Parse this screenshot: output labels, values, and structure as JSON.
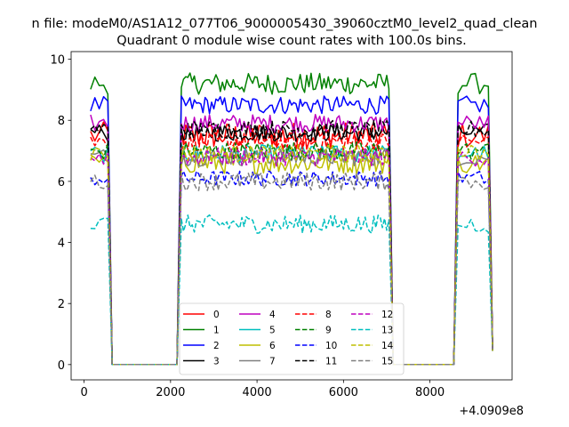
{
  "chart_data": {
    "type": "line",
    "suptitle": "n file: modeM0/AS1A12_077T06_9000005430_39060cztM0_level2_quad_clean",
    "title": "Quadrant 0 module wise count rates with 100.0s bins.",
    "xlabel": "",
    "ylabel": "",
    "x_offset_label": "+4.0909e8",
    "xlim": [
      -300,
      9900
    ],
    "ylim": [
      -0.5,
      10.25
    ],
    "xticks": [
      0,
      2000,
      4000,
      6000,
      8000
    ],
    "xtick_labels": [
      "0",
      "2000",
      "4000",
      "6000",
      "8000"
    ],
    "yticks": [
      0,
      2,
      4,
      6,
      8,
      10
    ],
    "ytick_labels": [
      "0",
      "2",
      "4",
      "6",
      "8",
      "10"
    ],
    "legend_location": "lower center",
    "segments": [
      {
        "x_start": 150,
        "x_end": 550,
        "drop_end": 650
      },
      {
        "x_start": 2250,
        "x_end": 7050,
        "ramp_start": 2150,
        "drop_end": 7150
      },
      {
        "x_start": 8650,
        "x_end": 9350,
        "ramp_start": 8550,
        "drop_end": 9450
      }
    ],
    "zero_segments": [
      [
        650,
        2150
      ],
      [
        7150,
        8550
      ]
    ],
    "series": [
      {
        "name": "0",
        "color": "#ff0000",
        "dash": "solid",
        "level": 7.5,
        "noise": 0.45
      },
      {
        "name": "1",
        "color": "#008000",
        "dash": "solid",
        "level": 9.2,
        "noise": 0.35
      },
      {
        "name": "2",
        "color": "#0000ff",
        "dash": "solid",
        "level": 8.5,
        "noise": 0.3
      },
      {
        "name": "3",
        "color": "#000000",
        "dash": "solid",
        "level": 7.6,
        "noise": 0.3
      },
      {
        "name": "4",
        "color": "#bf00bf",
        "dash": "solid",
        "level": 7.9,
        "noise": 0.3
      },
      {
        "name": "5",
        "color": "#00bfbf",
        "dash": "solid",
        "level": 6.9,
        "noise": 0.3
      },
      {
        "name": "6",
        "color": "#bfbf00",
        "dash": "solid",
        "level": 6.6,
        "noise": 0.35
      },
      {
        "name": "7",
        "color": "#808080",
        "dash": "solid",
        "level": 6.8,
        "noise": 0.3
      },
      {
        "name": "8",
        "color": "#ff0000",
        "dash": "dashed",
        "level": 7.3,
        "noise": 0.3
      },
      {
        "name": "9",
        "color": "#008000",
        "dash": "dashed",
        "level": 7.0,
        "noise": 0.3
      },
      {
        "name": "10",
        "color": "#0000ff",
        "dash": "dashed",
        "level": 6.1,
        "noise": 0.25
      },
      {
        "name": "11",
        "color": "#000000",
        "dash": "dashed",
        "level": 7.7,
        "noise": 0.3
      },
      {
        "name": "12",
        "color": "#bf00bf",
        "dash": "dashed",
        "level": 6.8,
        "noise": 0.3
      },
      {
        "name": "13",
        "color": "#00bfbf",
        "dash": "dashed",
        "level": 4.6,
        "noise": 0.3
      },
      {
        "name": "14",
        "color": "#bfbf00",
        "dash": "dashed",
        "level": 6.9,
        "noise": 0.3
      },
      {
        "name": "15",
        "color": "#808080",
        "dash": "dashed",
        "level": 6.0,
        "noise": 0.3
      }
    ]
  }
}
